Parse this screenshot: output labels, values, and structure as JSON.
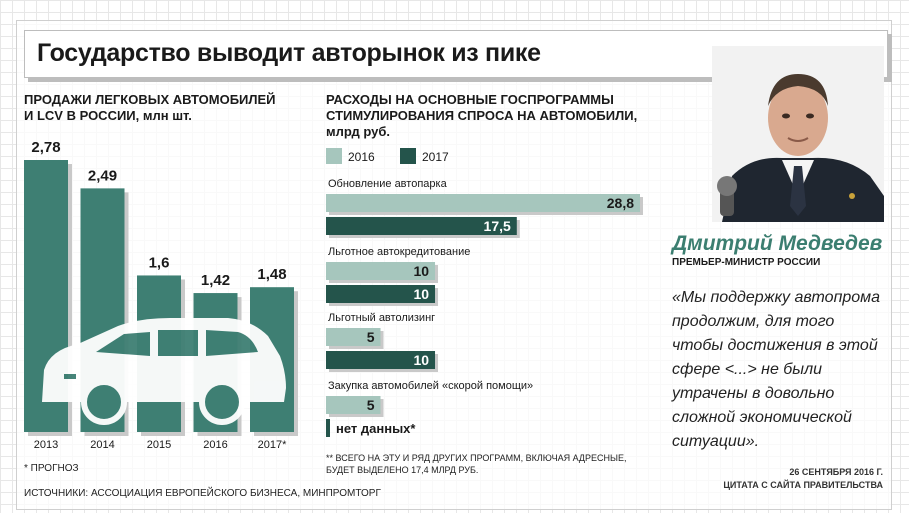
{
  "title": "Государство выводит авторынок из пике",
  "left_chart": {
    "header_line1": "ПРОДАЖИ ЛЕГКОВЫХ АВТОМОБИЛЕЙ",
    "header_line2": "И LCV В РОССИИ, млн шт.",
    "note": "* ПРОГНОЗ"
  },
  "right_chart": {
    "header_line1": "РАСХОДЫ НА ОСНОВНЫЕ ГОСПРОГРАММЫ",
    "header_line2": "СТИМУЛИРОВАНИЯ СПРОСА НА АВТОМОБИЛИ,",
    "header_line3": "млрд руб.",
    "footnote_line1": "** ВСЕГО НА ЭТУ И РЯД ДРУГИХ ПРОГРАММ, ВКЛЮЧАЯ АДРЕСНЫЕ,",
    "footnote_line2": "БУДЕТ ВЫДЕЛЕНО 17,4 МЛРД РУБ."
  },
  "sources": "ИСТОЧНИКИ: АССОЦИАЦИЯ ЕВРОПЕЙСКОГО БИЗНЕСА, МИНПРОМТОРГ",
  "person": {
    "name": "Дмитрий Медведев",
    "role": "ПРЕМЬЕР-МИНИСТР РОССИИ",
    "quote": "«Мы поддержку автопрома продолжим, для того чтобы достижения в этой сфере <...> не были утрачены в довольно сложной экономической ситуации».",
    "date": "26 СЕНТЯБРЯ 2016 Г.",
    "source": "ЦИТАТА С САЙТА ПРАВИТЕЛЬСТВА"
  },
  "colors": {
    "bar_dark": "#3e7f73",
    "bar_light": "#a6c6bd",
    "bar_darker": "#24544b",
    "name_color": "#3b7e70"
  },
  "chart_data": [
    {
      "type": "bar",
      "categories": [
        "2013",
        "2014",
        "2015",
        "2016",
        "2017*"
      ],
      "values": [
        2.78,
        2.49,
        1.6,
        1.42,
        1.48
      ],
      "value_labels": [
        "2,78",
        "2,49",
        "1,6",
        "1,42",
        "1,48"
      ],
      "ylim": [
        0,
        2.78
      ]
    },
    {
      "type": "bar",
      "orientation": "horizontal",
      "categories": [
        "Обновление автопарка",
        "Льготное автокредитование",
        "Льготный автолизинг",
        "Закупка автомобилей «скорой помощи»"
      ],
      "series": [
        {
          "name": "2016",
          "values": [
            28.8,
            10,
            5,
            5
          ],
          "labels": [
            "28,8",
            "10",
            "5",
            "5"
          ]
        },
        {
          "name": "2017",
          "values": [
            17.5,
            10,
            10,
            null
          ],
          "labels": [
            "17,5",
            "10",
            "10",
            "нет данных*"
          ]
        }
      ],
      "xlim": [
        0,
        28.8
      ]
    }
  ]
}
